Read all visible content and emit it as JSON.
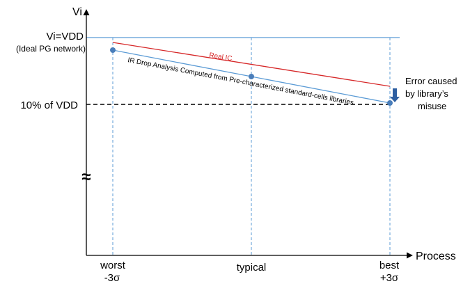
{
  "chart_data": {
    "type": "line",
    "title": "",
    "ylabel": "Vi",
    "xlabel": "Process",
    "categories": [
      {
        "line1": "worst",
        "line2": "-3σ"
      },
      {
        "line1": "typical",
        "line2": ""
      },
      {
        "line1": "best",
        "line2": "+3σ"
      }
    ],
    "y_reference_lines": [
      {
        "label": "Vi=VDD",
        "sublabel": "(Ideal PG network)",
        "style": "solid",
        "color": "#5b9bd5"
      },
      {
        "label": "10% of VDD",
        "style": "dashed",
        "color": "#000000"
      }
    ],
    "axis_break_symbol": "≈",
    "series": [
      {
        "name": "Real IC",
        "color": "#d62728"
      },
      {
        "name": "IR Drop Analysis Computed from Pre-characterized standard-cells libraries",
        "color": "#5b9bd5"
      }
    ],
    "annotation": {
      "lines": [
        "Error caused",
        "by library’s",
        "misuse"
      ],
      "arrow_color": "#2e5fa1"
    },
    "grid": "dashed vertical lines at each category",
    "legend": "none"
  }
}
